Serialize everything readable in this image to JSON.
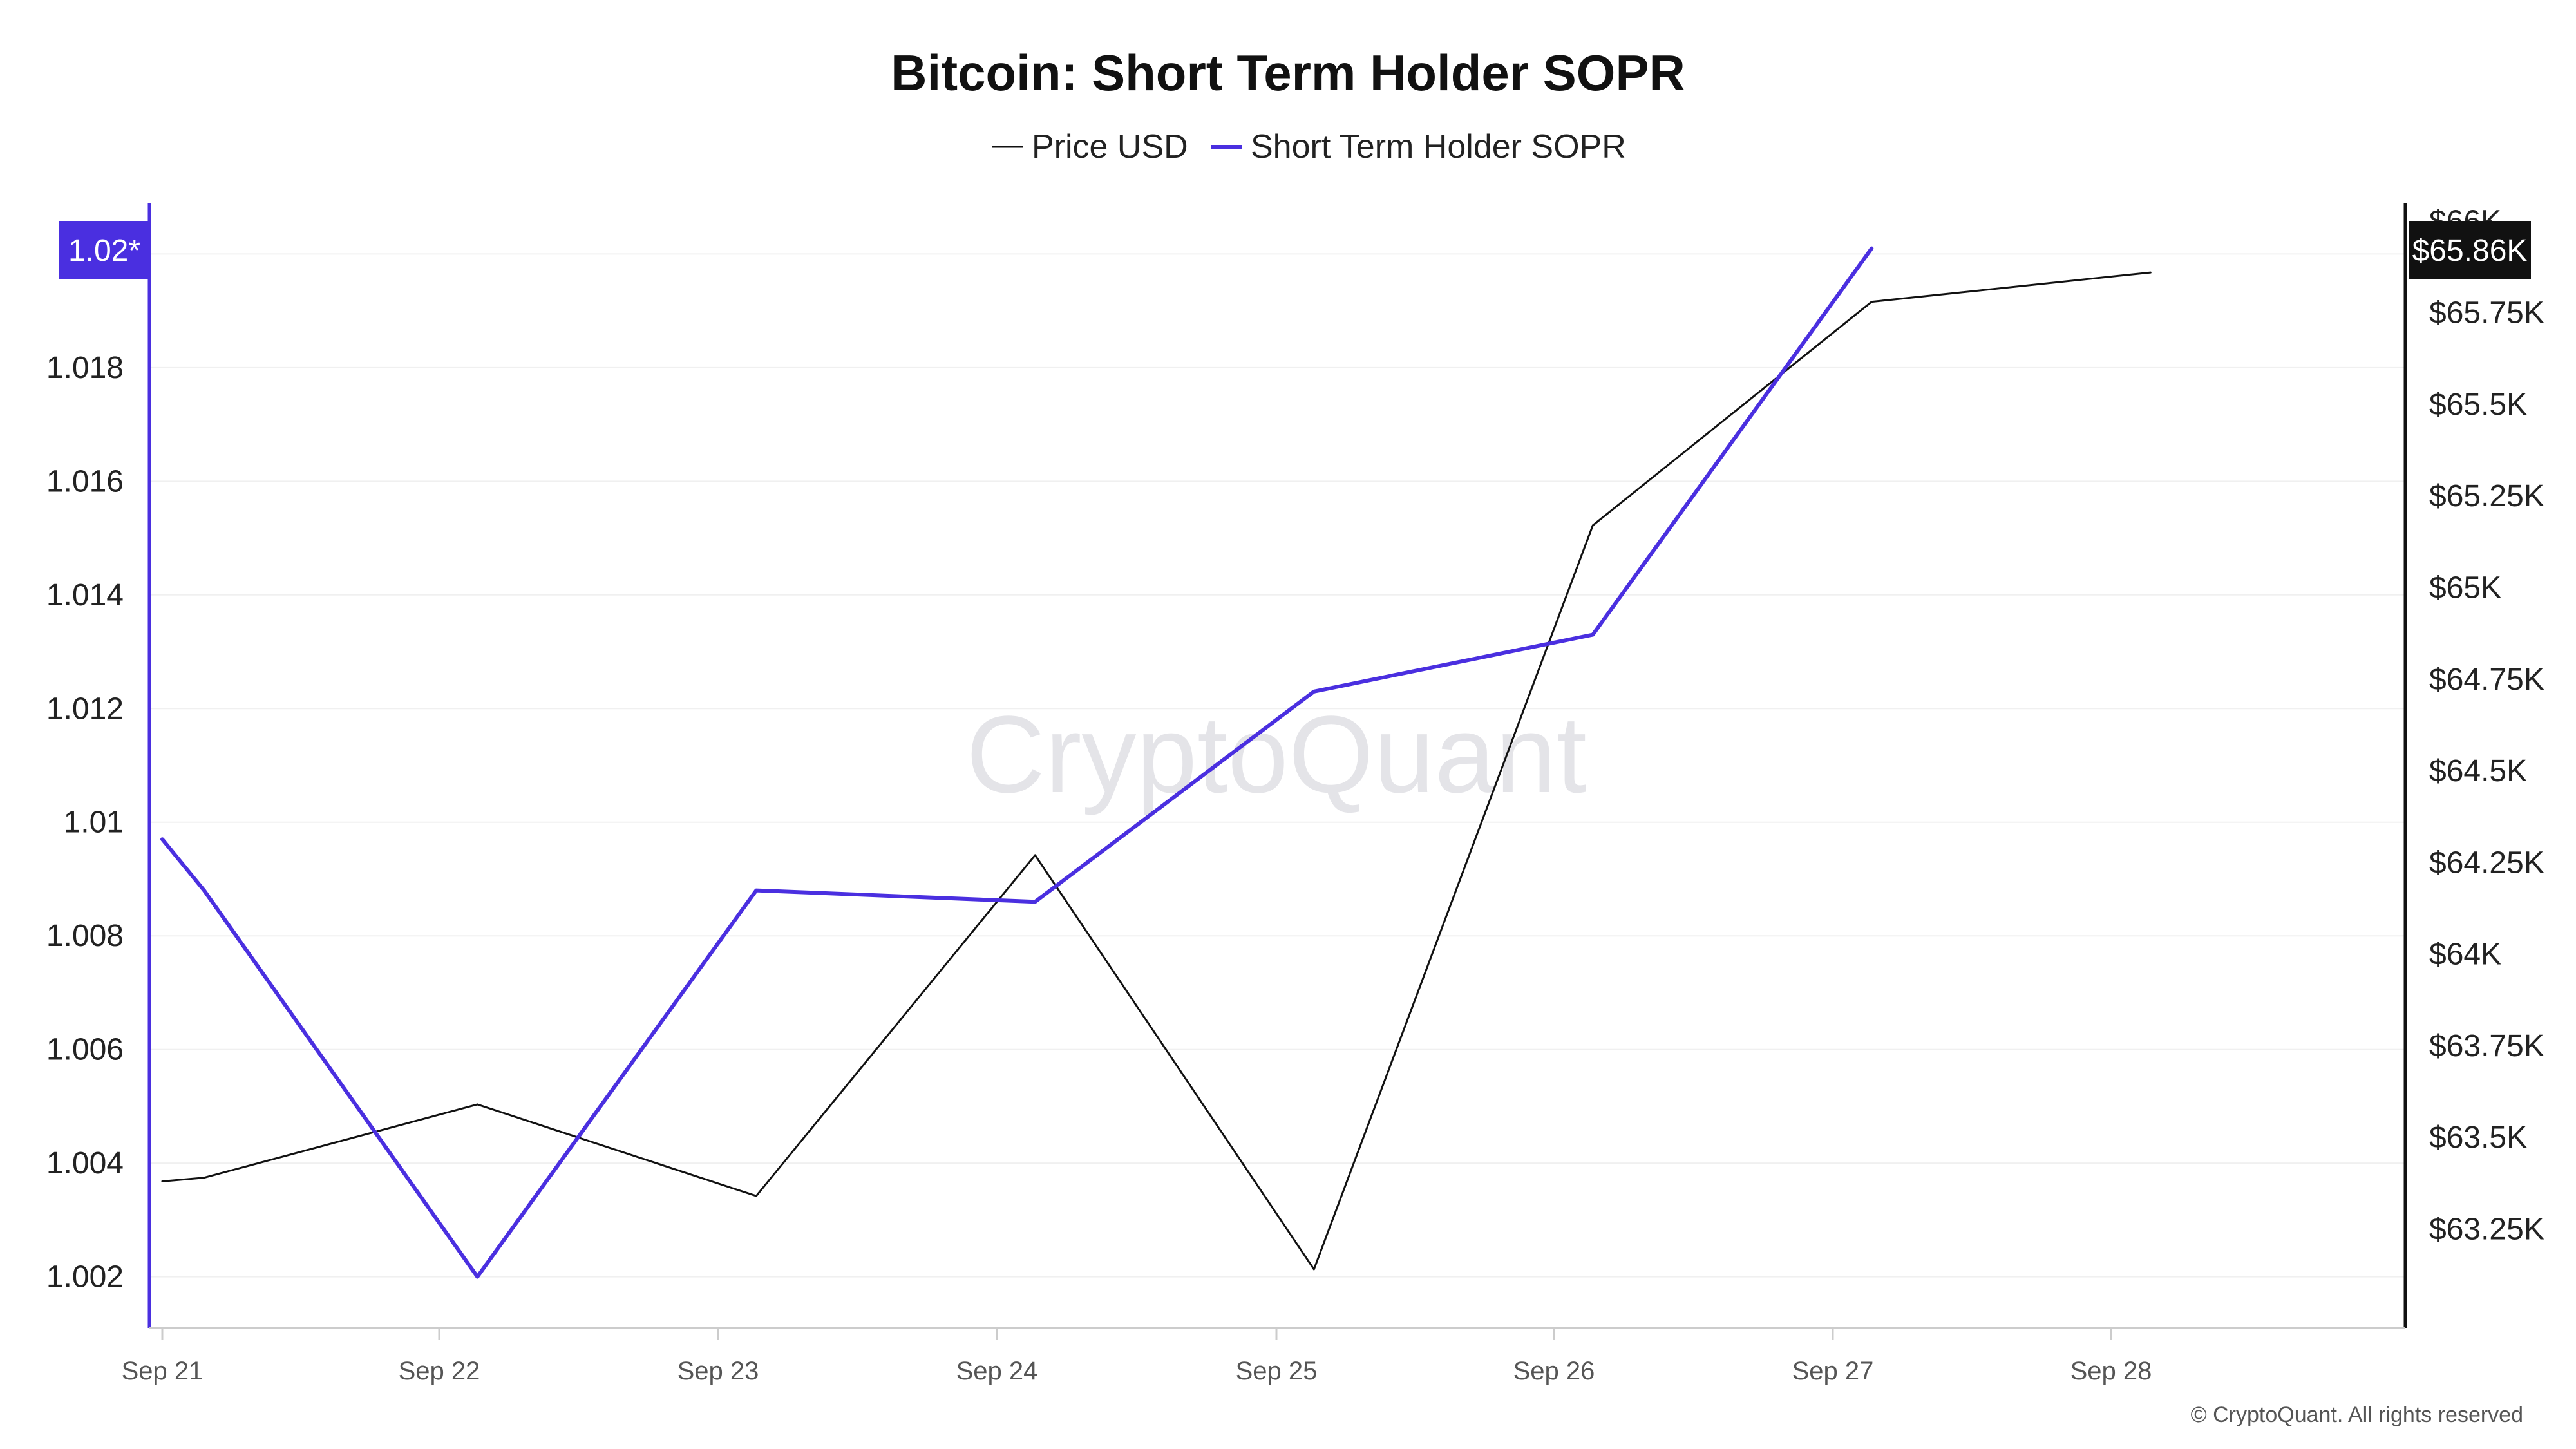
{
  "chart_data": {
    "type": "line",
    "title": "Bitcoin: Short Term Holder SOPR",
    "categories": [
      "Sep 21",
      "Sep 22",
      "Sep 23",
      "Sep 24",
      "Sep 25",
      "Sep 26",
      "Sep 27",
      "Sep 28"
    ],
    "legend_position": "top-center",
    "grid": true,
    "left_axis": {
      "ticks": [
        "1.002",
        "1.004",
        "1.006",
        "1.008",
        "1.01",
        "1.012",
        "1.014",
        "1.016",
        "1.018"
      ],
      "range": [
        1.0011,
        1.0209
      ],
      "current_value_label": "1.02*"
    },
    "right_axis": {
      "ticks": [
        "$63.25K",
        "$63.5K",
        "$63.75K",
        "$64K",
        "$64.25K",
        "$64.5K",
        "$64.75K",
        "$65K",
        "$65.25K",
        "$65.5K",
        "$65.75K",
        "$66K"
      ],
      "range": [
        62.98,
        66.05
      ],
      "current_value_label": "$65.86K"
    },
    "series": [
      {
        "name": "Price USD",
        "axis": "right",
        "color": "#111111",
        "points": [
          {
            "x": 0.0,
            "y": 63.38
          },
          {
            "x": 0.15,
            "y": 63.39
          },
          {
            "x": 1.13,
            "y": 63.59
          },
          {
            "x": 2.13,
            "y": 63.34
          },
          {
            "x": 3.13,
            "y": 64.27
          },
          {
            "x": 4.13,
            "y": 63.14
          },
          {
            "x": 5.13,
            "y": 65.17
          },
          {
            "x": 6.13,
            "y": 65.78
          },
          {
            "x": 7.13,
            "y": 65.86
          }
        ]
      },
      {
        "name": "Short Term Holder SOPR",
        "axis": "left",
        "color": "#4a2fe0",
        "points": [
          {
            "x": 0.0,
            "y": 1.0097
          },
          {
            "x": 0.15,
            "y": 1.0088
          },
          {
            "x": 1.13,
            "y": 1.002
          },
          {
            "x": 2.13,
            "y": 1.0088
          },
          {
            "x": 3.13,
            "y": 1.0086
          },
          {
            "x": 4.13,
            "y": 1.0123
          },
          {
            "x": 5.13,
            "y": 1.0133
          },
          {
            "x": 6.13,
            "y": 1.0201
          }
        ]
      }
    ]
  },
  "watermark": "CryptoQuant",
  "copyright": "© CryptoQuant. All rights reserved",
  "colors": {
    "price_line": "#111111",
    "sopr_line": "#4a2fe0",
    "sopr_badge": "#4a2fe0",
    "price_badge": "#111111",
    "grid": "#f0f0f0"
  }
}
